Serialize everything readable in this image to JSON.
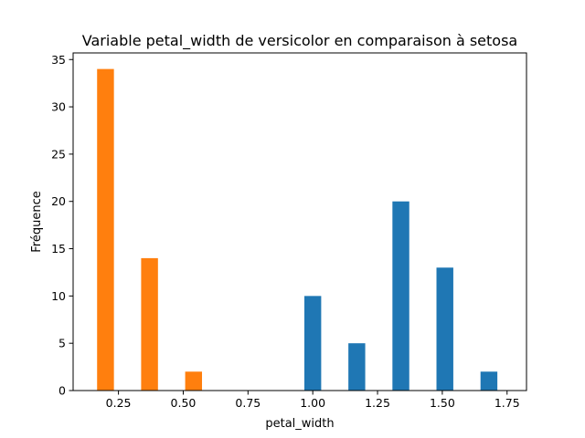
{
  "chart_data": {
    "type": "bar",
    "title": "Variable petal_width de versicolor en comparaison à setosa",
    "xlabel": "petal_width",
    "ylabel": "Fréquence",
    "xlim": [
      0.075,
      1.825
    ],
    "ylim": [
      0,
      35.7
    ],
    "xticks": [
      0.25,
      0.5,
      0.75,
      1.0,
      1.25,
      1.5,
      1.75
    ],
    "xtick_labels": [
      "0.25",
      "0.50",
      "0.75",
      "1.00",
      "1.25",
      "1.50",
      "1.75"
    ],
    "yticks": [
      0,
      5,
      10,
      15,
      20,
      25,
      30,
      35
    ],
    "ytick_labels": [
      "0",
      "5",
      "10",
      "15",
      "20",
      "25",
      "30",
      "35"
    ],
    "grid": false,
    "bar_width": 0.065,
    "series": [
      {
        "color": "#1f77b4",
        "x": [
          1.0,
          1.17,
          1.34,
          1.51,
          1.68
        ],
        "values": [
          10,
          5,
          20,
          13,
          2
        ]
      },
      {
        "color": "#ff7f0e",
        "x": [
          0.2,
          0.37,
          0.54
        ],
        "values": [
          34,
          14,
          2
        ]
      }
    ]
  }
}
